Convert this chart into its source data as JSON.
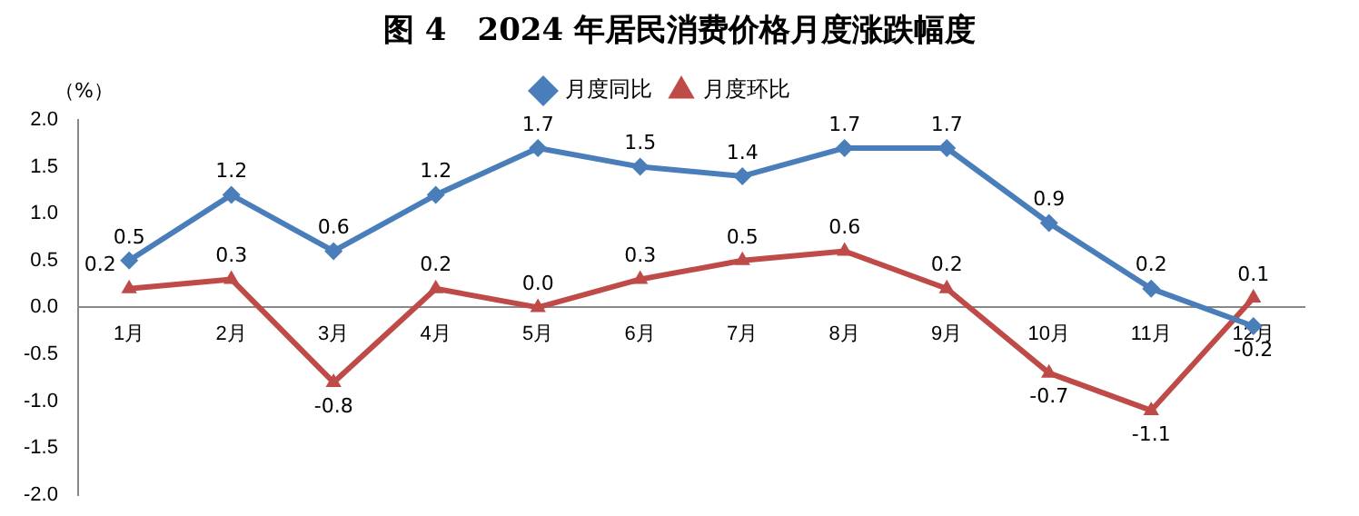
{
  "chart_data": {
    "type": "line",
    "title": "图 4　2024 年居民消费价格月度涨跌幅度",
    "ylabel": "（%）",
    "categories": [
      "1月",
      "2月",
      "3月",
      "4月",
      "5月",
      "6月",
      "7月",
      "8月",
      "9月",
      "10月",
      "11月",
      "12月"
    ],
    "series": [
      {
        "name": "月度同比",
        "color": "#4a7ebb",
        "marker": "diamond",
        "values": [
          0.5,
          1.2,
          0.6,
          1.2,
          1.7,
          1.5,
          1.4,
          1.7,
          1.7,
          0.9,
          0.2,
          -0.2
        ]
      },
      {
        "name": "月度环比",
        "color": "#be4b48",
        "marker": "triangle",
        "values": [
          0.2,
          0.3,
          -0.8,
          0.2,
          0.0,
          0.3,
          0.5,
          0.6,
          0.2,
          -0.7,
          -1.1,
          0.1
        ],
        "value_labels": [
          "0.2",
          "0.3",
          "-0.8",
          "0.2",
          "0.0",
          "0.3",
          "0.5",
          "0.6",
          "0.2",
          "-0.7",
          "-1.1",
          "0.1"
        ]
      }
    ],
    "ylim": [
      -2,
      2
    ],
    "yticks": [
      {
        "value": -2,
        "label": "-2.0"
      },
      {
        "value": -1.5,
        "label": "-1.5"
      },
      {
        "value": -1,
        "label": "-1.0"
      },
      {
        "value": -0.5,
        "label": "-0.5"
      },
      {
        "value": 0,
        "label": "0.0"
      },
      {
        "value": 0.5,
        "label": "0.5"
      },
      {
        "value": 1,
        "label": "1.0"
      },
      {
        "value": 1.5,
        "label": "1.5"
      },
      {
        "value": 2,
        "label": "2.0"
      }
    ],
    "grid": false,
    "legend": "top",
    "data_labels": true,
    "line_style": "solid"
  }
}
